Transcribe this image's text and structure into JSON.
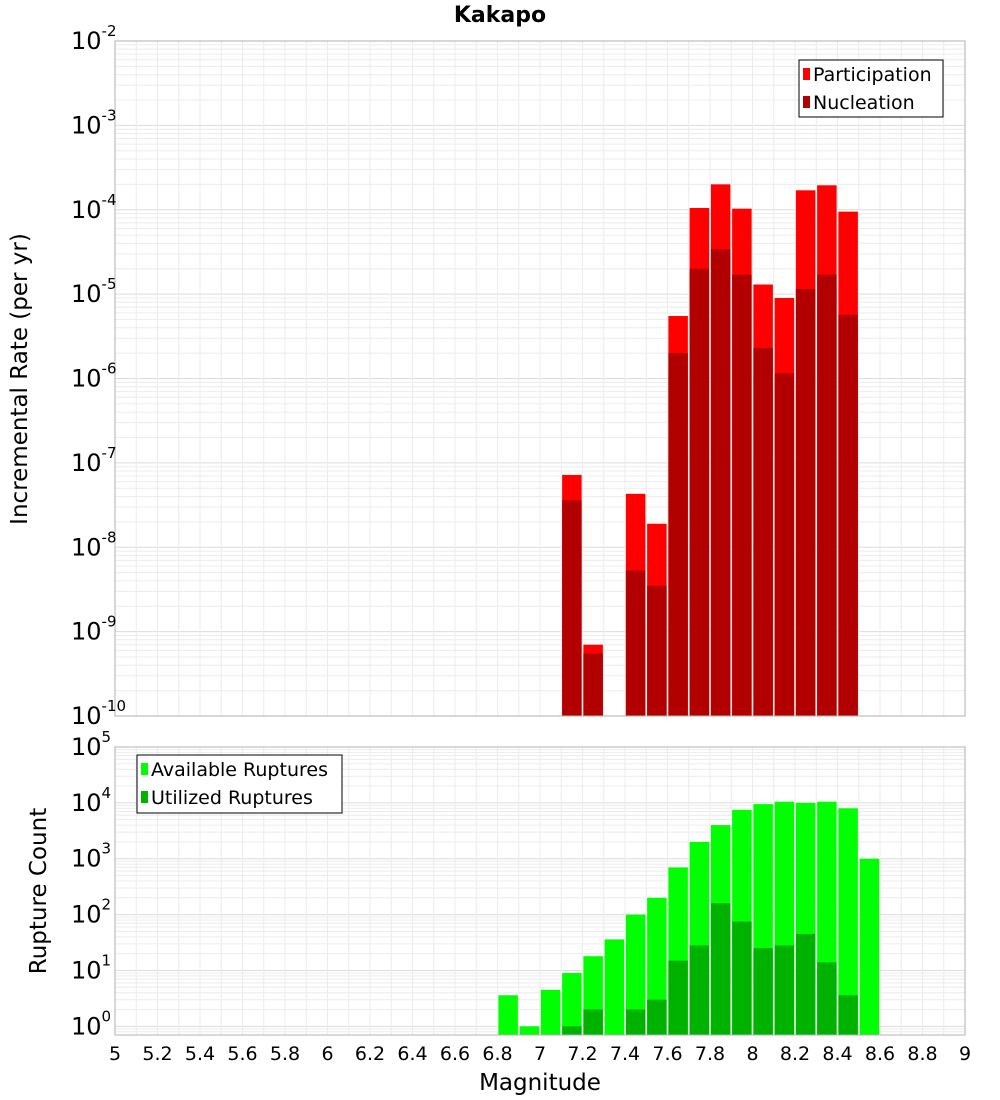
{
  "chart_data": [
    {
      "type": "bar",
      "title": "Kakapo",
      "xlabel": "",
      "ylabel": "Incremental Rate (per yr)",
      "xlim": [
        5,
        9
      ],
      "ylim": [
        1e-10,
        0.01
      ],
      "yscale": "log",
      "y_tick_labels": [
        {
          "base": "10",
          "exp": "-2"
        },
        {
          "base": "10",
          "exp": "-3"
        },
        {
          "base": "10",
          "exp": "-4"
        },
        {
          "base": "10",
          "exp": "-5"
        },
        {
          "base": "10",
          "exp": "-6"
        },
        {
          "base": "10",
          "exp": "-7"
        },
        {
          "base": "10",
          "exp": "-8"
        },
        {
          "base": "10",
          "exp": "-9"
        },
        {
          "base": "10",
          "exp": "-10"
        }
      ],
      "grid": true,
      "legend_position": "top-right",
      "x": [
        7.15,
        7.25,
        7.35,
        7.45,
        7.55,
        7.65,
        7.75,
        7.85,
        7.95,
        8.05,
        8.15,
        8.25,
        8.35,
        8.45
      ],
      "series": [
        {
          "name": "Participation",
          "color": "#ff0000",
          "values": [
            7.2e-08,
            7e-10,
            0,
            4.3e-08,
            1.9e-08,
            5.5e-06,
            0.000105,
            0.0002,
            0.000103,
            1.3e-05,
            9e-06,
            0.00017,
            0.000195,
            9.5e-05
          ]
        },
        {
          "name": "Nucleation",
          "color": "#b20000",
          "values": [
            3.6e-08,
            5.5e-10,
            0,
            5.3e-09,
            3.5e-09,
            2e-06,
            2e-05,
            3.4e-05,
            1.7e-05,
            2.3e-06,
            1.15e-06,
            1.15e-05,
            1.7e-05,
            5.7e-06
          ]
        }
      ]
    },
    {
      "type": "bar",
      "title": "",
      "xlabel": "Magnitude",
      "ylabel": "Rupture Count",
      "xlim": [
        5,
        9
      ],
      "ylim": [
        0.7,
        100000.0
      ],
      "yscale": "log",
      "x_tick_labels": [
        "5",
        "5.2",
        "5.4",
        "5.6",
        "5.8",
        "6",
        "6.2",
        "6.4",
        "6.6",
        "6.8",
        "7",
        "7.2",
        "7.4",
        "7.6",
        "7.8",
        "8",
        "8.2",
        "8.4",
        "8.6",
        "8.8",
        "9"
      ],
      "y_tick_labels": [
        {
          "base": "10",
          "exp": "5"
        },
        {
          "base": "10",
          "exp": "4"
        },
        {
          "base": "10",
          "exp": "3"
        },
        {
          "base": "10",
          "exp": "2"
        },
        {
          "base": "10",
          "exp": "1"
        },
        {
          "base": "10",
          "exp": "0"
        }
      ],
      "grid": true,
      "legend_position": "top-left",
      "x": [
        6.85,
        6.95,
        7.05,
        7.15,
        7.25,
        7.35,
        7.45,
        7.55,
        7.65,
        7.75,
        7.85,
        7.95,
        8.05,
        8.15,
        8.25,
        8.35,
        8.45,
        8.55
      ],
      "series": [
        {
          "name": "Available Ruptures",
          "color": "#00ff00",
          "values": [
            3.6,
            1,
            4.5,
            9,
            18,
            36,
            100,
            200,
            700,
            2000,
            4000,
            7500,
            9500,
            10500,
            10000,
            10500,
            8000,
            1000
          ]
        },
        {
          "name": "Utilized Ruptures",
          "color": "#00b200",
          "values": [
            0,
            0,
            0,
            1,
            2,
            0,
            2,
            3,
            15,
            28,
            160,
            75,
            25,
            28,
            45,
            14,
            3.6,
            0
          ]
        }
      ]
    }
  ]
}
